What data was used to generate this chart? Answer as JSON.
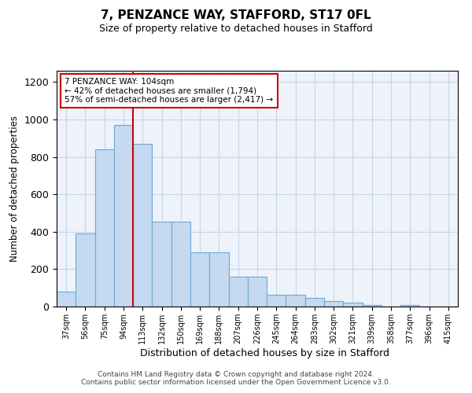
{
  "title1": "7, PENZANCE WAY, STAFFORD, ST17 0FL",
  "title2": "Size of property relative to detached houses in Stafford",
  "xlabel": "Distribution of detached houses by size in Stafford",
  "ylabel": "Number of detached properties",
  "categories": [
    "37sqm",
    "56sqm",
    "75sqm",
    "94sqm",
    "113sqm",
    "132sqm",
    "150sqm",
    "169sqm",
    "188sqm",
    "207sqm",
    "226sqm",
    "245sqm",
    "264sqm",
    "283sqm",
    "302sqm",
    "321sqm",
    "339sqm",
    "358sqm",
    "377sqm",
    "396sqm",
    "415sqm"
  ],
  "values": [
    80,
    390,
    840,
    970,
    870,
    455,
    455,
    290,
    290,
    160,
    160,
    65,
    65,
    48,
    30,
    20,
    8,
    0,
    8,
    0,
    0
  ],
  "bar_color": "#c5d9f0",
  "bar_edge_color": "#6aaad4",
  "vline_color": "#cc0000",
  "vline_pos": 3.5,
  "annotation_text": "7 PENZANCE WAY: 104sqm\n← 42% of detached houses are smaller (1,794)\n57% of semi-detached houses are larger (2,417) →",
  "annotation_box_color": "#ffffff",
  "annotation_box_edge": "#cc0000",
  "ylim": [
    0,
    1260
  ],
  "yticks": [
    0,
    200,
    400,
    600,
    800,
    1000,
    1200
  ],
  "footer1": "Contains HM Land Registry data © Crown copyright and database right 2024.",
  "footer2": "Contains public sector information licensed under the Open Government Licence v3.0.",
  "bg_color": "#eef3fb",
  "grid_color": "#c8d4e8"
}
